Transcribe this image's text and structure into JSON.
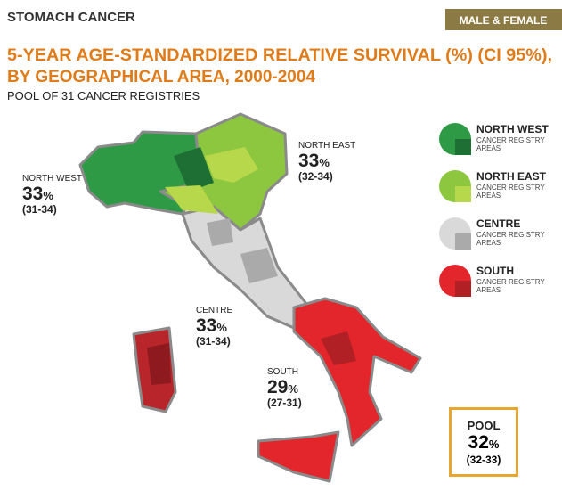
{
  "header": {
    "title": "STOMACH CANCER",
    "badge": "MALE & FEMALE"
  },
  "headline": [
    "5-YEAR AGE-STANDARDIZED RELATIVE SURVIVAL (%) (CI 95%),",
    "BY GEOGRAPHICAL AREA, 2000-2004"
  ],
  "subtitle": "POOL OF 31 CANCER REGISTRIES",
  "legend_note": "CANCER REGISTRY AREAS",
  "regions": [
    {
      "name": "NORTH WEST",
      "value": 33,
      "unit": "%",
      "ci": "(31-34)",
      "color": "#2e9a45",
      "dark": "#1d6f33"
    },
    {
      "name": "NORTH EAST",
      "value": 33,
      "unit": "%",
      "ci": "(32-34)",
      "color": "#8dc63f",
      "dark": "#b7d84a"
    },
    {
      "name": "CENTRE",
      "value": 33,
      "unit": "%",
      "ci": "(31-34)",
      "color": "#d9d9d9",
      "dark": "#aaaaaa"
    },
    {
      "name": "SOUTH",
      "value": 29,
      "unit": "%",
      "ci": "(27-31)",
      "color": "#e3262b",
      "dark": "#b02025"
    }
  ],
  "pool": {
    "name": "POOL",
    "value": 32,
    "unit": "%",
    "ci": "(32-33)"
  }
}
